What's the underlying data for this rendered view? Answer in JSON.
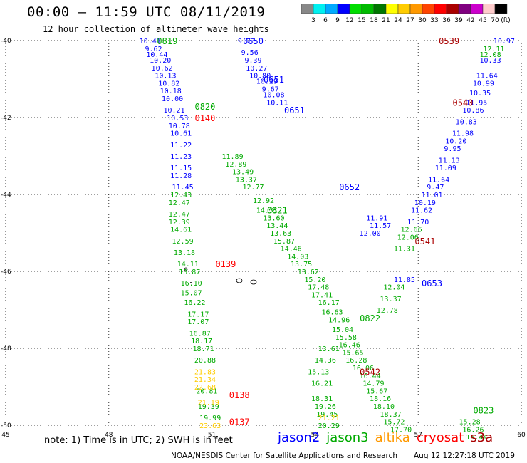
{
  "header": {
    "title": "00:00 – 11:59 UTC 08/11/2019",
    "subtitle": "12 hour collection of altimeter wave heights"
  },
  "colorbar": {
    "ticks": [
      "3",
      "6",
      "9",
      "12",
      "15",
      "18",
      "21",
      "24",
      "27",
      "30",
      "33",
      "36",
      "39",
      "42",
      "45",
      "70",
      "(ft)"
    ],
    "colors": [
      "#888888",
      "#00f0f0",
      "#00aaff",
      "#0000ff",
      "#00dd00",
      "#00bb00",
      "#007700",
      "#ffff00",
      "#ffcc00",
      "#ff9900",
      "#ff4400",
      "#ff0000",
      "#aa0000",
      "#800080",
      "#cc00cc",
      "#ffcccc",
      "#000000"
    ]
  },
  "note": "note: 1) Time is in UTC; 2) SWH is in feet",
  "legend": [
    {
      "label": "jason2",
      "color": "#0000ff"
    },
    {
      "label": "jason3",
      "color": "#00aa00"
    },
    {
      "label": "altika",
      "color": "#ff9900"
    },
    {
      "label": "cryosat",
      "color": "#ff0000"
    },
    {
      "label": "s3a",
      "color": "#aa0000"
    }
  ],
  "footer": {
    "credit": "NOAA/NESDIS Center for Satellite Applications and Research",
    "timestamp": "Aug 12 12:27:18 UTC 2019"
  },
  "chart_data": {
    "type": "scatter",
    "title": "12 hour collection of altimeter wave heights",
    "xlabel": "",
    "ylabel": "",
    "x_ticks": [
      "45",
      "48",
      "51",
      "54",
      "57",
      "60"
    ],
    "y_ticks": [
      "-40",
      "-42",
      "-44",
      "-46",
      "-48",
      "-50"
    ],
    "xlim": [
      45,
      60
    ],
    "ylim": [
      -50,
      -40
    ],
    "grid": true,
    "time_labels": [
      {
        "text": "0819",
        "x": 49.7,
        "y": -40.0,
        "color": "#00aa00"
      },
      {
        "text": "0650",
        "x": 52.2,
        "y": -40.0,
        "color": "#0000ff"
      },
      {
        "text": "0539",
        "x": 57.9,
        "y": -40.0,
        "color": "#aa0000"
      },
      {
        "text": "0651",
        "x": 52.8,
        "y": -41.0,
        "color": "#0000ff"
      },
      {
        "text": "0540",
        "x": 58.3,
        "y": -41.6,
        "color": "#aa0000"
      },
      {
        "text": "0820",
        "x": 50.8,
        "y": -41.7,
        "color": "#00aa00"
      },
      {
        "text": "0651",
        "x": 53.4,
        "y": -41.8,
        "color": "#0000ff"
      },
      {
        "text": "0140",
        "x": 50.8,
        "y": -42.0,
        "color": "#ff0000"
      },
      {
        "text": "0652",
        "x": 55.0,
        "y": -43.8,
        "color": "#0000ff"
      },
      {
        "text": "0821",
        "x": 52.9,
        "y": -44.4,
        "color": "#00aa00"
      },
      {
        "text": "0541",
        "x": 57.2,
        "y": -45.2,
        "color": "#aa0000"
      },
      {
        "text": "0139",
        "x": 51.4,
        "y": -45.8,
        "color": "#ff0000"
      },
      {
        "text": "0653",
        "x": 57.4,
        "y": -46.3,
        "color": "#0000ff"
      },
      {
        "text": "0822",
        "x": 55.6,
        "y": -47.2,
        "color": "#00aa00"
      },
      {
        "text": "0542",
        "x": 55.6,
        "y": -48.6,
        "color": "#aa0000"
      },
      {
        "text": "0138",
        "x": 51.8,
        "y": -49.2,
        "color": "#ff0000"
      },
      {
        "text": "0823",
        "x": 58.9,
        "y": -49.6,
        "color": "#00aa00"
      },
      {
        "text": "0137",
        "x": 51.8,
        "y": -49.9,
        "color": "#ff0000"
      }
    ],
    "series": [
      {
        "name": "jason2",
        "color": "#0000ff",
        "points": [
          {
            "x": 49.2,
            "y": -40.0,
            "v": "10.41"
          },
          {
            "x": 49.3,
            "y": -40.2,
            "v": "9.62"
          },
          {
            "x": 49.4,
            "y": -40.35,
            "v": "10.44"
          },
          {
            "x": 49.5,
            "y": -40.5,
            "v": "10.20"
          },
          {
            "x": 49.55,
            "y": -40.7,
            "v": "10.62"
          },
          {
            "x": 49.65,
            "y": -40.9,
            "v": "10.13"
          },
          {
            "x": 49.75,
            "y": -41.1,
            "v": "10.82"
          },
          {
            "x": 49.8,
            "y": -41.3,
            "v": "10.18"
          },
          {
            "x": 49.85,
            "y": -41.5,
            "v": "10.00"
          },
          {
            "x": 49.9,
            "y": -41.8,
            "v": "10.21"
          },
          {
            "x": 50.0,
            "y": -42.0,
            "v": "10.53"
          },
          {
            "x": 50.05,
            "y": -42.2,
            "v": "10.78"
          },
          {
            "x": 50.1,
            "y": -42.4,
            "v": "10.61"
          },
          {
            "x": 50.1,
            "y": -42.7,
            "v": "11.22"
          },
          {
            "x": 50.1,
            "y": -43.0,
            "v": "11.23"
          },
          {
            "x": 50.1,
            "y": -43.3,
            "v": "11.15"
          },
          {
            "x": 50.1,
            "y": -43.5,
            "v": "11.28"
          },
          {
            "x": 50.15,
            "y": -43.8,
            "v": "11.45"
          },
          {
            "x": 52.0,
            "y": -40.0,
            "v": "9.73"
          },
          {
            "x": 52.1,
            "y": -40.3,
            "v": "9.56"
          },
          {
            "x": 52.2,
            "y": -40.5,
            "v": "9.39"
          },
          {
            "x": 52.3,
            "y": -40.7,
            "v": "10.27"
          },
          {
            "x": 52.4,
            "y": -40.9,
            "v": "10.80"
          },
          {
            "x": 52.6,
            "y": -41.05,
            "v": "10.29"
          },
          {
            "x": 52.7,
            "y": -41.25,
            "v": "9.67"
          },
          {
            "x": 52.8,
            "y": -41.4,
            "v": "10.08"
          },
          {
            "x": 52.9,
            "y": -41.6,
            "v": "10.11"
          },
          {
            "x": 55.8,
            "y": -44.6,
            "v": "11.91"
          },
          {
            "x": 55.9,
            "y": -44.8,
            "v": "11.57"
          },
          {
            "x": 55.6,
            "y": -45.0,
            "v": "12.00"
          },
          {
            "x": 56.6,
            "y": -46.2,
            "v": "11.85"
          },
          {
            "x": 59.5,
            "y": -40.0,
            "v": "10.97"
          },
          {
            "x": 59.1,
            "y": -40.5,
            "v": "10.33"
          },
          {
            "x": 59.0,
            "y": -40.9,
            "v": "11.64"
          },
          {
            "x": 58.9,
            "y": -41.1,
            "v": "10.99"
          },
          {
            "x": 58.8,
            "y": -41.35,
            "v": "10.35"
          },
          {
            "x": 58.7,
            "y": -41.6,
            "v": "11.95"
          },
          {
            "x": 58.6,
            "y": -41.8,
            "v": "10.86"
          },
          {
            "x": 58.4,
            "y": -42.1,
            "v": "10.83"
          },
          {
            "x": 58.3,
            "y": -42.4,
            "v": "11.98"
          },
          {
            "x": 58.1,
            "y": -42.6,
            "v": "10.20"
          },
          {
            "x": 58.0,
            "y": -42.8,
            "v": "9.95"
          },
          {
            "x": 57.9,
            "y": -43.1,
            "v": "11.13"
          },
          {
            "x": 57.8,
            "y": -43.3,
            "v": "11.09"
          },
          {
            "x": 57.6,
            "y": -43.6,
            "v": "11.64"
          },
          {
            "x": 57.5,
            "y": -43.8,
            "v": "9.47"
          },
          {
            "x": 57.4,
            "y": -44.0,
            "v": "11.01"
          },
          {
            "x": 57.2,
            "y": -44.2,
            "v": "10.19"
          },
          {
            "x": 57.1,
            "y": -44.4,
            "v": "11.62"
          },
          {
            "x": 57.0,
            "y": -44.7,
            "v": "11.70"
          }
        ]
      },
      {
        "name": "jason3",
        "color": "#00aa00",
        "points": [
          {
            "x": 50.1,
            "y": -44.0,
            "v": "12.43"
          },
          {
            "x": 50.05,
            "y": -44.2,
            "v": "12.47"
          },
          {
            "x": 50.05,
            "y": -44.5,
            "v": "12.47"
          },
          {
            "x": 50.05,
            "y": -44.7,
            "v": "12.39"
          },
          {
            "x": 50.1,
            "y": -44.9,
            "v": "14.61"
          },
          {
            "x": 50.15,
            "y": -45.2,
            "v": "12.59"
          },
          {
            "x": 50.2,
            "y": -45.5,
            "v": "13.18"
          },
          {
            "x": 50.3,
            "y": -45.8,
            "v": "14.11"
          },
          {
            "x": 50.35,
            "y": -46.0,
            "v": "13.87"
          },
          {
            "x": 50.4,
            "y": -46.3,
            "v": "16.10"
          },
          {
            "x": 50.4,
            "y": -46.55,
            "v": "15.07"
          },
          {
            "x": 50.5,
            "y": -46.8,
            "v": "16.22"
          },
          {
            "x": 50.6,
            "y": -47.1,
            "v": "17.17"
          },
          {
            "x": 50.6,
            "y": -47.3,
            "v": "17.07"
          },
          {
            "x": 50.65,
            "y": -47.6,
            "v": "16.87"
          },
          {
            "x": 50.7,
            "y": -47.8,
            "v": "18.17"
          },
          {
            "x": 50.75,
            "y": -48.0,
            "v": "18.71"
          },
          {
            "x": 50.8,
            "y": -48.3,
            "v": "20.88"
          },
          {
            "x": 50.85,
            "y": -49.1,
            "v": "20.81"
          },
          {
            "x": 50.9,
            "y": -49.5,
            "v": "19.39"
          },
          {
            "x": 50.95,
            "y": -49.8,
            "v": "19.99"
          },
          {
            "x": 51.6,
            "y": -43.0,
            "v": "11.89"
          },
          {
            "x": 51.7,
            "y": -43.2,
            "v": "12.89"
          },
          {
            "x": 51.9,
            "y": -43.4,
            "v": "13.49"
          },
          {
            "x": 52.0,
            "y": -43.6,
            "v": "13.37"
          },
          {
            "x": 52.2,
            "y": -43.8,
            "v": "12.77"
          },
          {
            "x": 52.5,
            "y": -44.15,
            "v": "12.92"
          },
          {
            "x": 52.6,
            "y": -44.4,
            "v": "14.31"
          },
          {
            "x": 52.8,
            "y": -44.6,
            "v": "13.60"
          },
          {
            "x": 52.9,
            "y": -44.8,
            "v": "13.44"
          },
          {
            "x": 53.0,
            "y": -45.0,
            "v": "13.63"
          },
          {
            "x": 53.1,
            "y": -45.2,
            "v": "15.87"
          },
          {
            "x": 53.3,
            "y": -45.4,
            "v": "14.46"
          },
          {
            "x": 53.5,
            "y": -45.6,
            "v": "14.03"
          },
          {
            "x": 53.6,
            "y": -45.8,
            "v": "13.75"
          },
          {
            "x": 53.8,
            "y": -46.0,
            "v": "13.62"
          },
          {
            "x": 54.0,
            "y": -46.2,
            "v": "15.20"
          },
          {
            "x": 54.1,
            "y": -46.4,
            "v": "17.48"
          },
          {
            "x": 54.2,
            "y": -46.6,
            "v": "17.41"
          },
          {
            "x": 54.4,
            "y": -46.8,
            "v": "16.17"
          },
          {
            "x": 54.5,
            "y": -47.05,
            "v": "16.63"
          },
          {
            "x": 54.7,
            "y": -47.25,
            "v": "14.96"
          },
          {
            "x": 54.8,
            "y": -47.5,
            "v": "15.04"
          },
          {
            "x": 54.9,
            "y": -47.7,
            "v": "15.58"
          },
          {
            "x": 55.0,
            "y": -47.9,
            "v": "16.46"
          },
          {
            "x": 55.1,
            "y": -48.1,
            "v": "15.65"
          },
          {
            "x": 55.2,
            "y": -48.3,
            "v": "16.28"
          },
          {
            "x": 55.4,
            "y": -48.5,
            "v": "16.06"
          },
          {
            "x": 55.6,
            "y": -48.7,
            "v": "16.44"
          },
          {
            "x": 55.7,
            "y": -48.9,
            "v": "14.79"
          },
          {
            "x": 55.8,
            "y": -49.1,
            "v": "15.67"
          },
          {
            "x": 55.9,
            "y": -49.3,
            "v": "18.16"
          },
          {
            "x": 56.0,
            "y": -49.5,
            "v": "18.10"
          },
          {
            "x": 56.2,
            "y": -49.7,
            "v": "18.37"
          },
          {
            "x": 56.3,
            "y": -49.9,
            "v": "15.72"
          },
          {
            "x": 56.5,
            "y": -50.1,
            "v": "17.70"
          },
          {
            "x": 54.2,
            "y": -49.3,
            "v": "18.31"
          },
          {
            "x": 54.3,
            "y": -49.5,
            "v": "19.26"
          },
          {
            "x": 54.35,
            "y": -49.7,
            "v": "19.45"
          },
          {
            "x": 54.4,
            "y": -50.0,
            "v": "20.29"
          },
          {
            "x": 54.2,
            "y": -48.9,
            "v": "16.21"
          },
          {
            "x": 54.1,
            "y": -48.6,
            "v": "15.13"
          },
          {
            "x": 54.3,
            "y": -48.3,
            "v": "14.36"
          },
          {
            "x": 54.4,
            "y": -48.0,
            "v": "13.61"
          },
          {
            "x": 56.8,
            "y": -44.9,
            "v": "12.66"
          },
          {
            "x": 56.7,
            "y": -45.1,
            "v": "12.06"
          },
          {
            "x": 56.6,
            "y": -45.4,
            "v": "11.31"
          },
          {
            "x": 56.3,
            "y": -46.4,
            "v": "12.04"
          },
          {
            "x": 56.2,
            "y": -46.7,
            "v": "13.37"
          },
          {
            "x": 56.1,
            "y": -47.0,
            "v": "12.78"
          },
          {
            "x": 59.2,
            "y": -40.2,
            "v": "12.11"
          },
          {
            "x": 59.1,
            "y": -40.35,
            "v": "12.08"
          },
          {
            "x": 58.5,
            "y": -49.9,
            "v": "15.28"
          },
          {
            "x": 58.6,
            "y": -50.1,
            "v": "16.26"
          },
          {
            "x": 58.7,
            "y": -50.3,
            "v": "16.44"
          }
        ]
      },
      {
        "name": "altika",
        "color": "#ffcc00",
        "points": [
          {
            "x": 50.8,
            "y": -48.6,
            "v": "21.83"
          },
          {
            "x": 50.8,
            "y": -48.8,
            "v": "21.34"
          },
          {
            "x": 50.8,
            "y": -49.0,
            "v": "22.68"
          },
          {
            "x": 50.9,
            "y": -49.4,
            "v": "21.19"
          },
          {
            "x": 50.95,
            "y": -50.0,
            "v": "23.63"
          },
          {
            "x": 54.4,
            "y": -49.8,
            "v": "21.21"
          }
        ]
      }
    ]
  }
}
